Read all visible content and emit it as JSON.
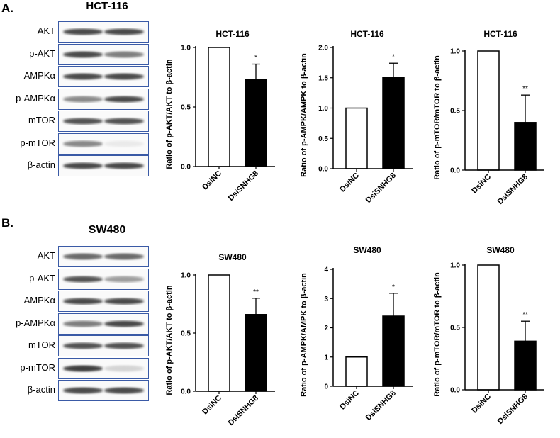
{
  "panels": [
    {
      "label": "A.",
      "cell_line": "HCT-116",
      "blots": [
        {
          "name": "AKT",
          "band1": 0.85,
          "band2": 0.85
        },
        {
          "name": "p-AKT",
          "band1": 0.85,
          "band2": 0.6
        },
        {
          "name": "AMPKα",
          "band1": 0.85,
          "band2": 0.85
        },
        {
          "name": "p-AMPKα",
          "band1": 0.55,
          "band2": 0.85
        },
        {
          "name": "mTOR",
          "band1": 0.8,
          "band2": 0.8
        },
        {
          "name": "p-mTOR",
          "band1": 0.55,
          "band2": 0.1
        },
        {
          "name": "β-actin",
          "band1": 0.85,
          "band2": 0.85
        }
      ]
    },
    {
      "label": "B.",
      "cell_line": "SW480",
      "blots": [
        {
          "name": "AKT",
          "band1": 0.7,
          "band2": 0.7
        },
        {
          "name": "p-AKT",
          "band1": 0.8,
          "band2": 0.45
        },
        {
          "name": "AMPKα",
          "band1": 0.85,
          "band2": 0.85
        },
        {
          "name": "p-AMPKα",
          "band1": 0.6,
          "band2": 0.85
        },
        {
          "name": "mTOR",
          "band1": 0.8,
          "band2": 0.8
        },
        {
          "name": "p-mTOR",
          "band1": 0.9,
          "band2": 0.2
        },
        {
          "name": "β-actin",
          "band1": 0.85,
          "band2": 0.85
        }
      ]
    }
  ],
  "chart_data": [
    {
      "type": "bar",
      "title": "HCT-116",
      "ylabel": "Ratio of p-AKT/AKT to β-actin",
      "categories": [
        "DsiNC",
        "DsiSNHG8"
      ],
      "values": [
        1.0,
        0.73
      ],
      "errors": [
        0,
        0.13
      ],
      "significance": [
        "",
        "*"
      ],
      "ylim": [
        0,
        1.0
      ],
      "yticks": [
        "0.0",
        "0.5",
        "1.0"
      ],
      "yticks_values": [
        0,
        0.5,
        1.0
      ],
      "fills": [
        "#ffffff",
        "#000000"
      ]
    },
    {
      "type": "bar",
      "title": "HCT-116",
      "ylabel": "Ratio of p-AMPK/AMPK to β-actin",
      "categories": [
        "DsiNC",
        "DsiSNHG8"
      ],
      "values": [
        1.0,
        1.51
      ],
      "errors": [
        0,
        0.23
      ],
      "significance": [
        "",
        "*"
      ],
      "ylim": [
        0,
        2.0
      ],
      "yticks": [
        "0.0",
        "0.5",
        "1.0",
        "1.5",
        "2.0"
      ],
      "yticks_values": [
        0,
        0.5,
        1.0,
        1.5,
        2.0
      ],
      "fills": [
        "#ffffff",
        "#000000"
      ]
    },
    {
      "type": "bar",
      "title": "HCT-116",
      "ylabel": "Ratio of p-mTOR/mTOR to β-actin",
      "categories": [
        "DsiNC",
        "DsiSNHG8"
      ],
      "values": [
        1.0,
        0.4
      ],
      "errors": [
        0,
        0.23
      ],
      "significance": [
        "",
        "**"
      ],
      "ylim": [
        0,
        1.0
      ],
      "yticks": [
        "0.0",
        "0.5",
        "1.0"
      ],
      "yticks_values": [
        0,
        0.5,
        1.0
      ],
      "fills": [
        "#ffffff",
        "#000000"
      ]
    },
    {
      "type": "bar",
      "title": "SW480",
      "ylabel": "Ratio of p-AKT/AKT to β-actin",
      "categories": [
        "DsiNC",
        "DsiSNHG8"
      ],
      "values": [
        1.0,
        0.66
      ],
      "errors": [
        0,
        0.14
      ],
      "significance": [
        "",
        "**"
      ],
      "ylim": [
        0,
        1.0
      ],
      "yticks": [
        "0.0",
        "0.5",
        "1.0"
      ],
      "yticks_values": [
        0,
        0.5,
        1.0
      ],
      "fills": [
        "#ffffff",
        "#000000"
      ]
    },
    {
      "type": "bar",
      "title": "SW480",
      "ylabel": "Ratio of p-AMPK/AMPK to β-actin",
      "categories": [
        "DsiNC",
        "DsiSNHG8"
      ],
      "values": [
        1.0,
        2.4
      ],
      "errors": [
        0,
        0.78
      ],
      "significance": [
        "",
        "*"
      ],
      "ylim": [
        0,
        4
      ],
      "yticks": [
        "0",
        "1",
        "2",
        "3",
        "4"
      ],
      "yticks_values": [
        0,
        1,
        2,
        3,
        4
      ],
      "fills": [
        "#ffffff",
        "#000000"
      ]
    },
    {
      "type": "bar",
      "title": "SW480",
      "ylabel": "Ratio of p-mTOR/mTOR to β-actin",
      "categories": [
        "DsiNC",
        "DsiSNHG8"
      ],
      "values": [
        1.0,
        0.39
      ],
      "errors": [
        0,
        0.16
      ],
      "significance": [
        "",
        "**"
      ],
      "ylim": [
        0,
        1.0
      ],
      "yticks": [
        "0.0",
        "0.5",
        "1.0"
      ],
      "yticks_values": [
        0,
        0.5,
        1.0
      ],
      "fills": [
        "#ffffff",
        "#000000"
      ]
    }
  ]
}
